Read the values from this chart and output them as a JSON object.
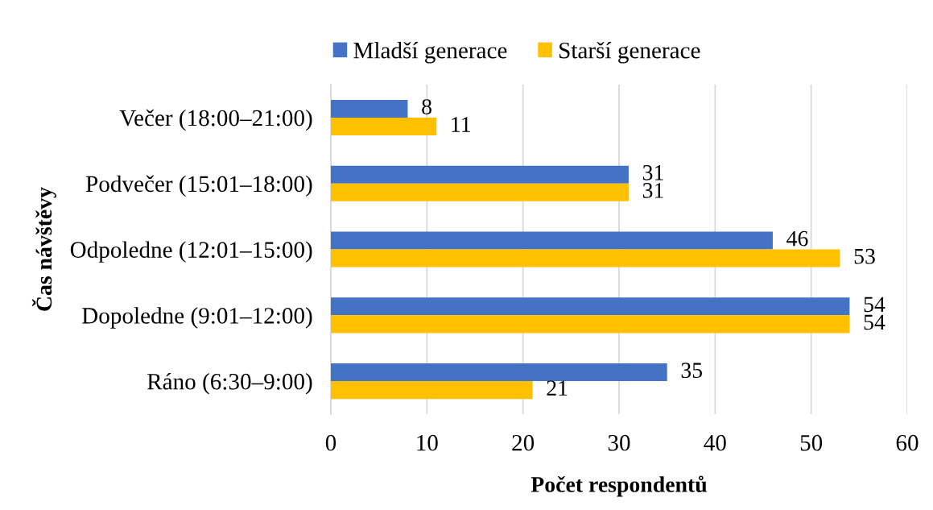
{
  "chart_data": {
    "type": "bar",
    "orientation": "horizontal",
    "categories": [
      "Večer (18:00–21:00)",
      "Podvečer (15:01–18:00)",
      "Odpoledne (12:01–15:00)",
      "Dopoledne (9:01–12:00)",
      "Ráno (6:30–9:00)"
    ],
    "series": [
      {
        "name": "Mladší generace",
        "color": "#4472c4",
        "values": [
          8,
          31,
          46,
          54,
          35
        ]
      },
      {
        "name": "Starší generace",
        "color": "#ffc000",
        "values": [
          11,
          31,
          53,
          54,
          21
        ]
      }
    ],
    "xlabel": "Počet respondentů",
    "ylabel": "Čas návštěvy",
    "xlim": [
      0,
      60
    ],
    "xticks": [
      0,
      10,
      20,
      30,
      40,
      50,
      60
    ],
    "grid": "x",
    "legend": "top",
    "data_labels": true
  }
}
